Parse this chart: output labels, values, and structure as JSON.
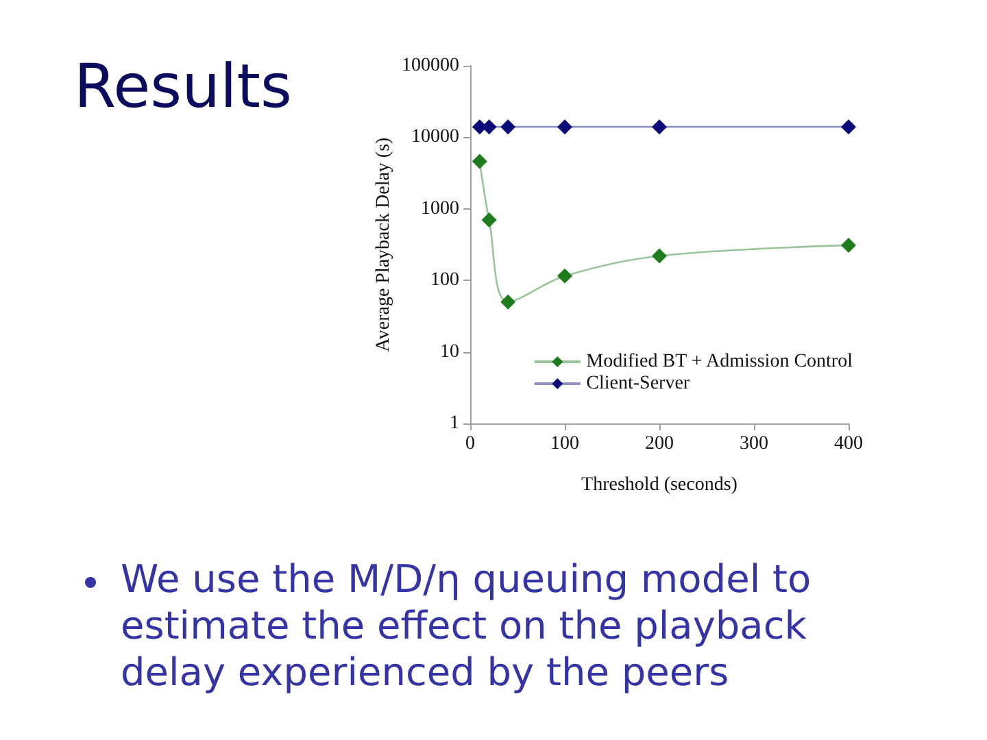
{
  "chart_data": {
    "type": "line",
    "title": "Results",
    "xlabel": "Threshold (seconds)",
    "ylabel": "Average Playback Delay (s)",
    "annotations": [
      "We use the M/D/η queuing model to estimate the effect on the playback delay experienced by the peers"
    ],
    "x": [
      10,
      20,
      40,
      100,
      200,
      400
    ],
    "series": [
      {
        "name": "Modified BT + Admission Control",
        "color": "#1e7b1e",
        "values": [
          4600,
          700,
          50,
          115,
          220,
          310
        ]
      },
      {
        "name": "Client-Server",
        "color": "#0a0a78",
        "values": [
          14000,
          14000,
          14000,
          14000,
          14000,
          14000
        ]
      }
    ],
    "xlim": [
      0,
      400
    ],
    "xticks": [
      0,
      100,
      200,
      300,
      400
    ],
    "ylim": [
      1,
      100000
    ],
    "yticks": [
      1,
      10,
      100,
      1000,
      10000,
      100000
    ],
    "log": true,
    "legend": "bottom right",
    "marker": "diamond",
    "line_style": "solid"
  }
}
